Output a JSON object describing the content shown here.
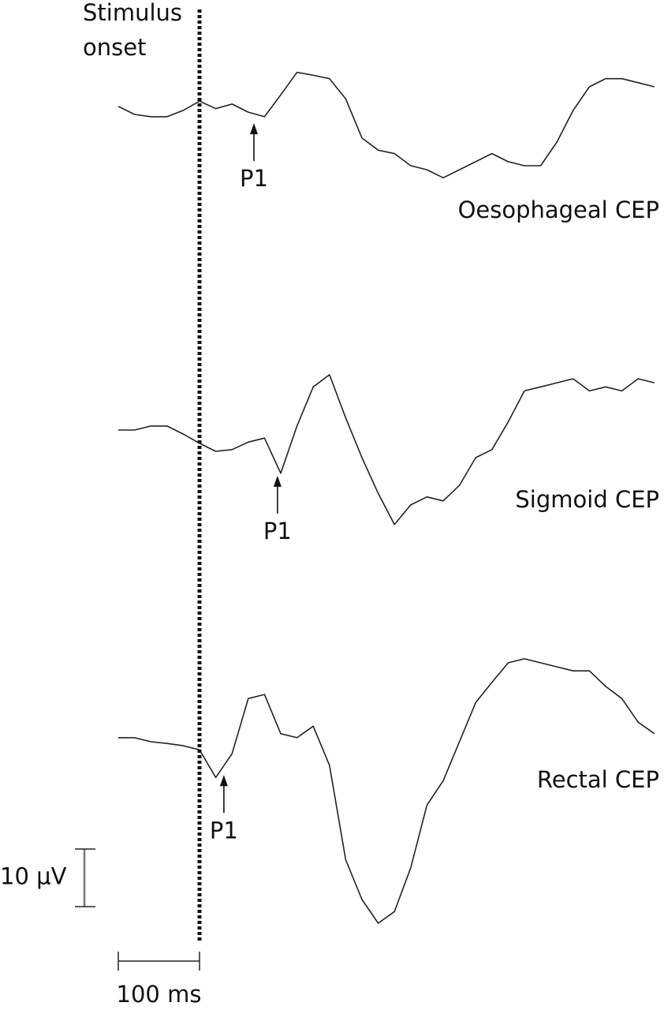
{
  "chart_data": {
    "type": "line",
    "stimulus_label": [
      "Stimulus",
      "onset"
    ],
    "onset": 0,
    "xlim": [
      -100,
      560
    ],
    "x": [
      -100,
      -80,
      -60,
      -40,
      -20,
      0,
      20,
      40,
      60,
      80,
      100,
      120,
      140,
      160,
      180,
      200,
      220,
      240,
      260,
      280,
      300,
      320,
      340,
      360,
      380,
      400,
      420,
      440,
      460,
      480,
      500,
      520,
      540,
      560
    ],
    "series": [
      {
        "name": "Oesophageal CEP",
        "color": "#222222",
        "values": [
          1.4,
          0,
          -0.4,
          -0.4,
          0.7,
          2.3,
          1.0,
          1.8,
          0.4,
          -0.4,
          3.4,
          7.3,
          6.8,
          6.2,
          2.7,
          -4.1,
          -6.2,
          -6.8,
          -8.9,
          -9.6,
          -11.0,
          -9.6,
          -8.2,
          -6.8,
          -8.2,
          -8.9,
          -8.9,
          -4.8,
          0.7,
          4.8,
          6.2,
          6.2,
          5.5,
          4.8
        ],
        "annotation": {
          "text": "P1",
          "x": 67
        }
      },
      {
        "name": "Sigmoid CEP",
        "color": "#222222",
        "values": [
          0,
          0,
          0.7,
          0.7,
          -0.7,
          -2.3,
          -3.7,
          -3.4,
          -2.1,
          -1.4,
          -7.5,
          0.7,
          7.5,
          9.6,
          2.1,
          -4.8,
          -11.0,
          -16.4,
          -13.0,
          -11.6,
          -12.3,
          -9.6,
          -4.8,
          -3.4,
          1.4,
          6.8,
          7.5,
          8.2,
          8.9,
          6.8,
          7.5,
          6.8,
          8.9,
          8.2
        ],
        "annotation": {
          "text": "P1",
          "x": 96
        }
      },
      {
        "name": "Rectal CEP",
        "color": "#222222",
        "values": [
          0.7,
          0.7,
          0,
          -0.3,
          -0.7,
          -1.4,
          -6.2,
          -2.1,
          7.5,
          8.2,
          1.4,
          0.7,
          2.7,
          -4.1,
          -20.5,
          -27.4,
          -31.5,
          -29.5,
          -21.9,
          -11.0,
          -6.8,
          0,
          6.8,
          10.3,
          13.7,
          14.4,
          13.7,
          13.0,
          12.3,
          12.3,
          9.6,
          7.5,
          3.4,
          1.4
        ],
        "annotation": {
          "text": "P1",
          "x": 30
        }
      }
    ],
    "scale_y": {
      "value": 10,
      "label": "10 μV"
    },
    "scale_x": {
      "value": 100,
      "label": "100 ms"
    }
  }
}
